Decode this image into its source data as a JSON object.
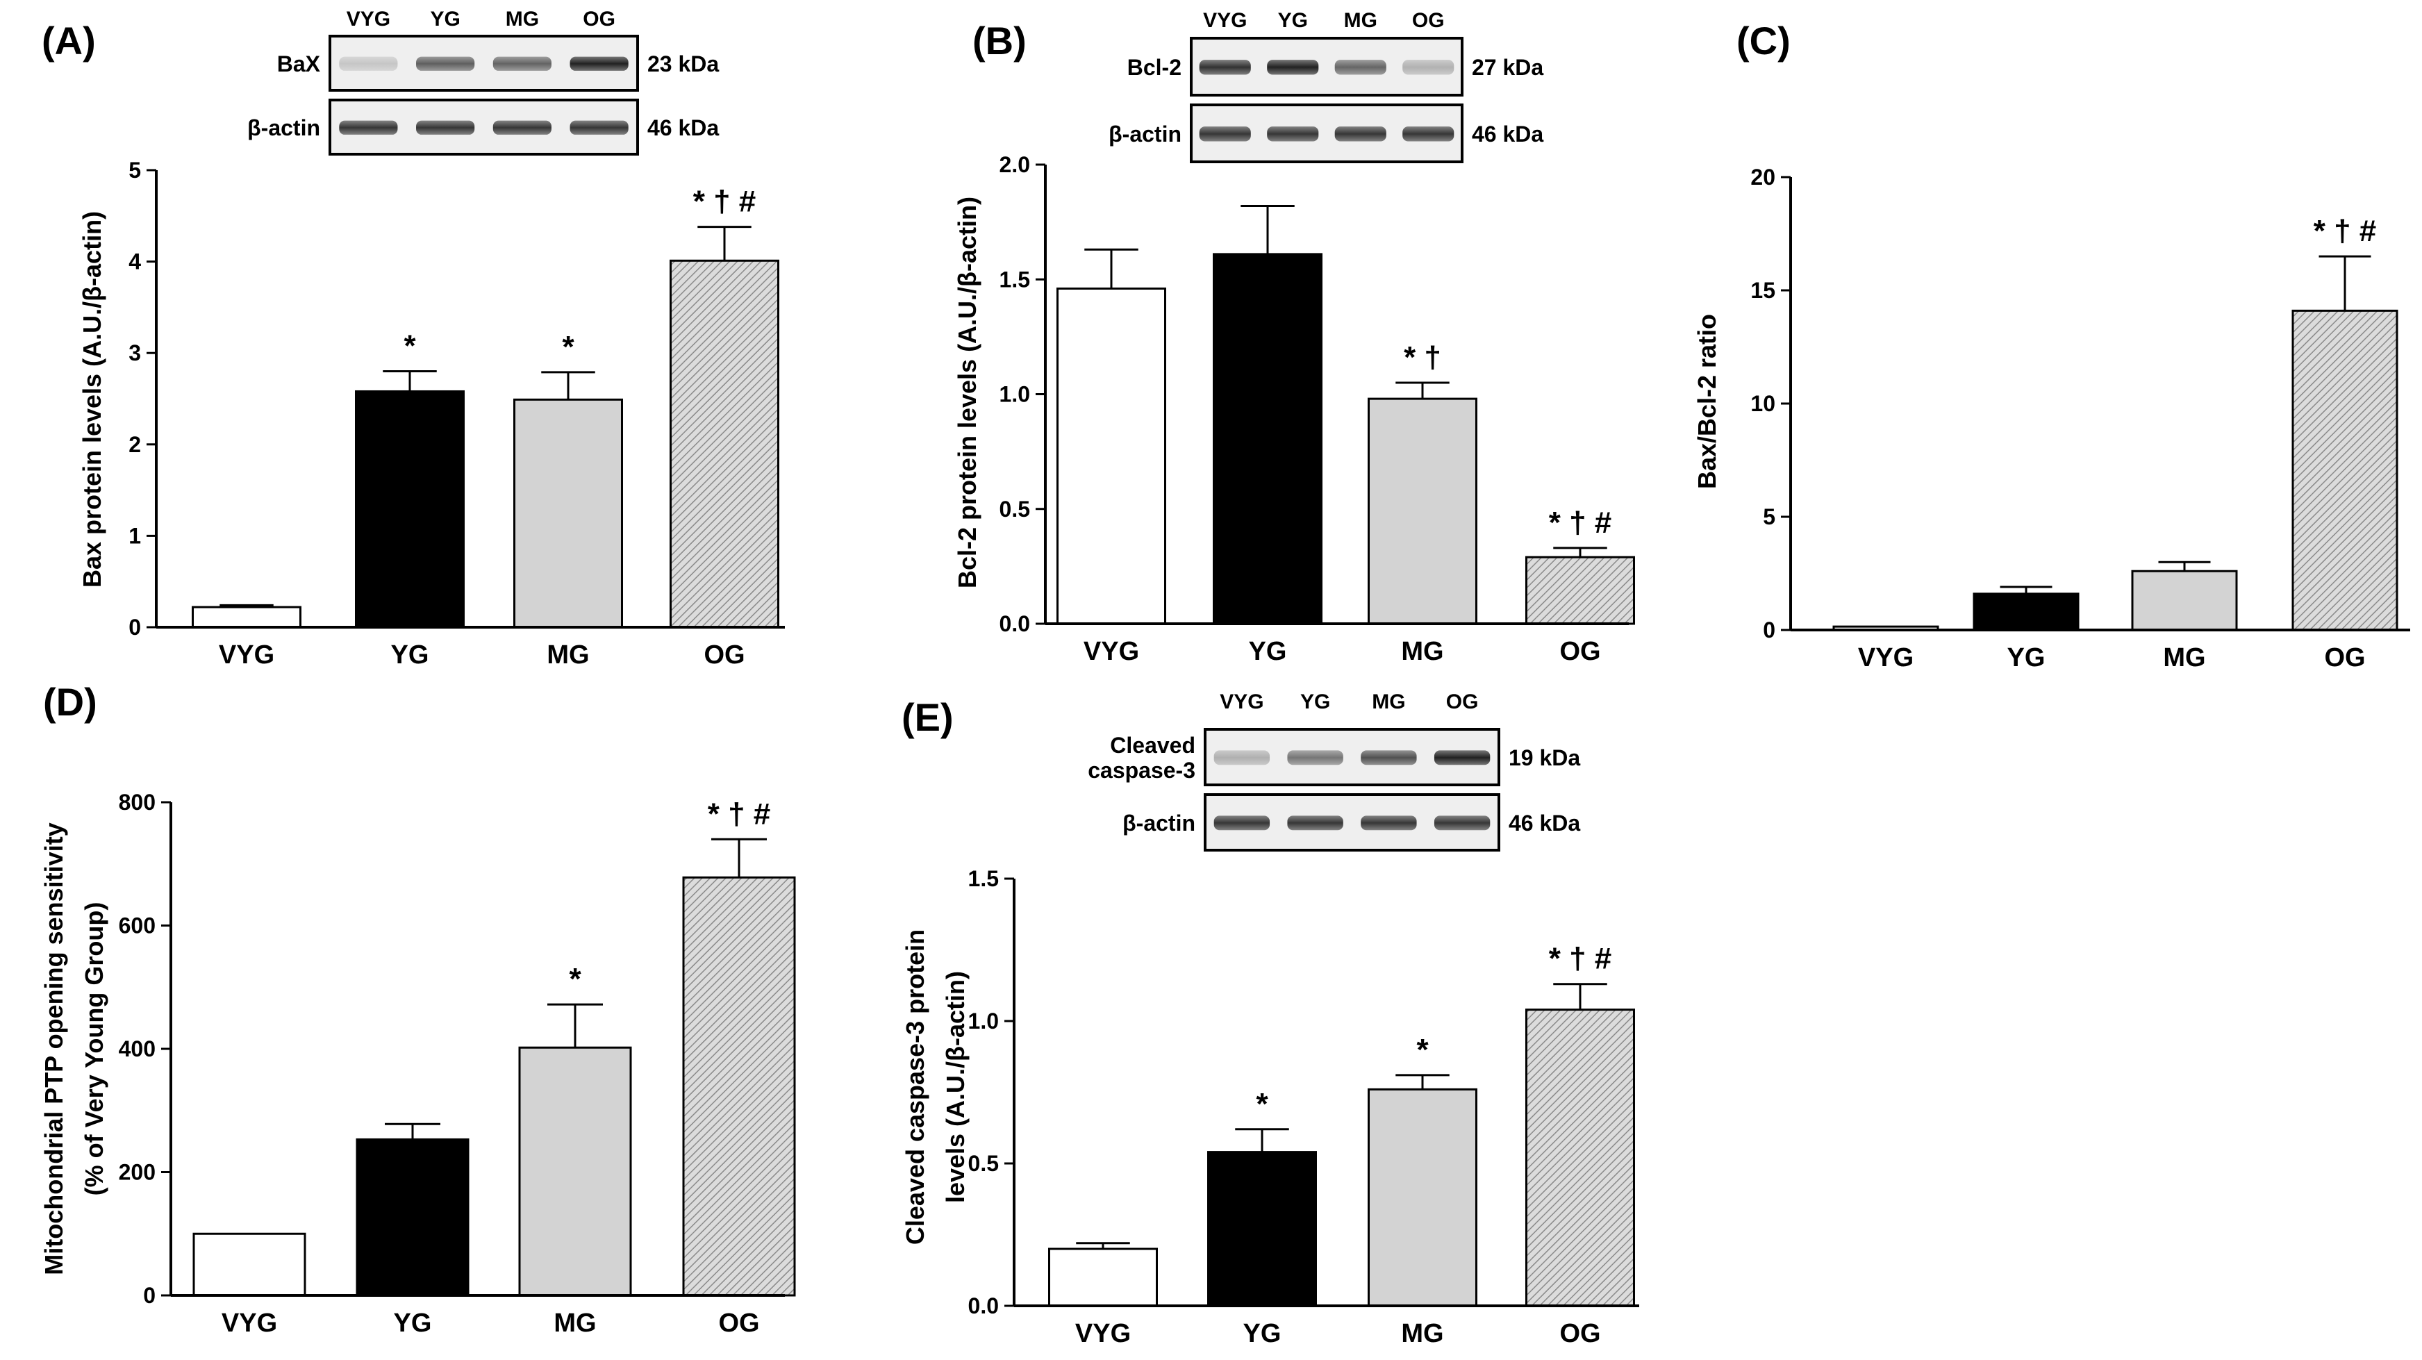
{
  "chart_data": [
    {
      "panel": "(A)",
      "type": "bar",
      "categories": [
        "VYG",
        "YG",
        "MG",
        "OG"
      ],
      "values": [
        0.22,
        2.58,
        2.49,
        4.01
      ],
      "errors": [
        0.02,
        0.22,
        0.3,
        0.37
      ],
      "annotations": [
        "",
        "*",
        "*",
        "* † #"
      ],
      "ylabel": "Bax protein levels (A.U./β-actin)",
      "ylim": [
        0,
        5
      ],
      "yticks": [
        "0",
        "1",
        "2",
        "3",
        "4",
        "5"
      ],
      "blot": {
        "columns": [
          "VYG",
          "YG",
          "MG",
          "OG"
        ],
        "rows": [
          {
            "label": "BaX",
            "kda": "23 kDa"
          },
          {
            "label": "β-actin",
            "kda": "46 kDa"
          }
        ]
      }
    },
    {
      "panel": "(B)",
      "type": "bar",
      "categories": [
        "VYG",
        "YG",
        "MG",
        "OG"
      ],
      "values": [
        1.46,
        1.61,
        0.98,
        0.29
      ],
      "errors": [
        0.17,
        0.21,
        0.07,
        0.04
      ],
      "annotations": [
        "",
        "",
        "* †",
        "* † #"
      ],
      "ylabel": "Bcl-2 protein levels (A.U./β-actin)",
      "ylim": [
        0,
        2
      ],
      "yticks": [
        "0.0",
        "0.5",
        "1.0",
        "1.5",
        "2.0"
      ],
      "blot": {
        "columns": [
          "VYG",
          "YG",
          "MG",
          "OG"
        ],
        "rows": [
          {
            "label": "Bcl-2",
            "kda": "27 kDa"
          },
          {
            "label": "β-actin",
            "kda": "46 kDa"
          }
        ]
      }
    },
    {
      "panel": "(C)",
      "type": "bar",
      "categories": [
        "VYG",
        "YG",
        "MG",
        "OG"
      ],
      "values": [
        0.15,
        1.6,
        2.6,
        14.1
      ],
      "errors": [
        0.0,
        0.3,
        0.4,
        2.4
      ],
      "annotations": [
        "",
        "",
        "",
        "* † #"
      ],
      "ylabel": "Bax/Bcl-2 ratio",
      "ylim": [
        0,
        20
      ],
      "yticks": [
        "0",
        "5",
        "10",
        "15",
        "20"
      ]
    },
    {
      "panel": "(D)",
      "type": "bar",
      "categories": [
        "VYG",
        "YG",
        "MG",
        "OG"
      ],
      "values": [
        100,
        253,
        402,
        678
      ],
      "errors": [
        0,
        25,
        70,
        62
      ],
      "annotations": [
        "",
        "",
        "*",
        "* † #"
      ],
      "ylabel": "Mitochondrial PTP opening sensitivity",
      "ylabel2": "(% of Very Young Group)",
      "ylim": [
        0,
        800
      ],
      "yticks": [
        "0",
        "200",
        "400",
        "600",
        "800"
      ]
    },
    {
      "panel": "(E)",
      "type": "bar",
      "categories": [
        "VYG",
        "YG",
        "MG",
        "OG"
      ],
      "values": [
        0.2,
        0.54,
        0.76,
        1.04
      ],
      "errors": [
        0.02,
        0.08,
        0.05,
        0.09
      ],
      "annotations": [
        "",
        "*",
        "*",
        "* † #"
      ],
      "ylabel": "Cleaved caspase-3 protein",
      "ylabel2": "levels (A.U./β-actin)",
      "ylim": [
        0,
        1.5
      ],
      "yticks": [
        "0.0",
        "0.5",
        "1.0",
        "1.5"
      ],
      "blot": {
        "columns": [
          "VYG",
          "YG",
          "MG",
          "OG"
        ],
        "rows": [
          {
            "label": "Cleaved\ncaspase-3",
            "kda": "19 kDa"
          },
          {
            "label": "β-actin",
            "kda": "46 kDa"
          }
        ]
      }
    }
  ]
}
